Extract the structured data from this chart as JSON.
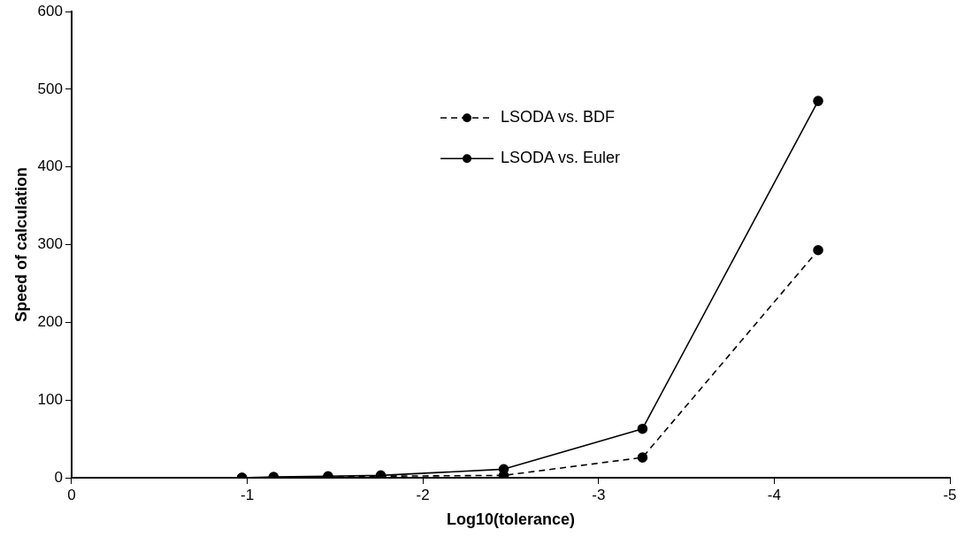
{
  "chart_data": {
    "type": "line",
    "xlabel": "Log10(tolerance)",
    "ylabel": "Speed of calculation",
    "xlim": [
      0,
      -5
    ],
    "xticks": [
      0,
      -1,
      -2,
      -3,
      -4,
      -5
    ],
    "ylim": [
      0,
      600
    ],
    "yticks": [
      0,
      100,
      200,
      300,
      400,
      500,
      600
    ],
    "grid": false,
    "legend": "top right",
    "marker": "circle",
    "series": [
      {
        "name": "LSODA vs. BDF",
        "color": "#000000",
        "line_style": "dashed",
        "x": [
          -0.97,
          -1.15,
          -1.46,
          -1.76,
          -2.46,
          -3.25,
          -4.25
        ],
        "values": [
          0,
          0,
          1,
          2,
          3,
          26,
          293
        ]
      },
      {
        "name": "LSODA vs. Euler",
        "color": "#000000",
        "line_style": "solid",
        "x": [
          -0.97,
          -1.15,
          -1.46,
          -1.76,
          -2.46,
          -3.25,
          -4.25
        ],
        "values": [
          0,
          1,
          2,
          3,
          11,
          63,
          485
        ]
      }
    ]
  }
}
